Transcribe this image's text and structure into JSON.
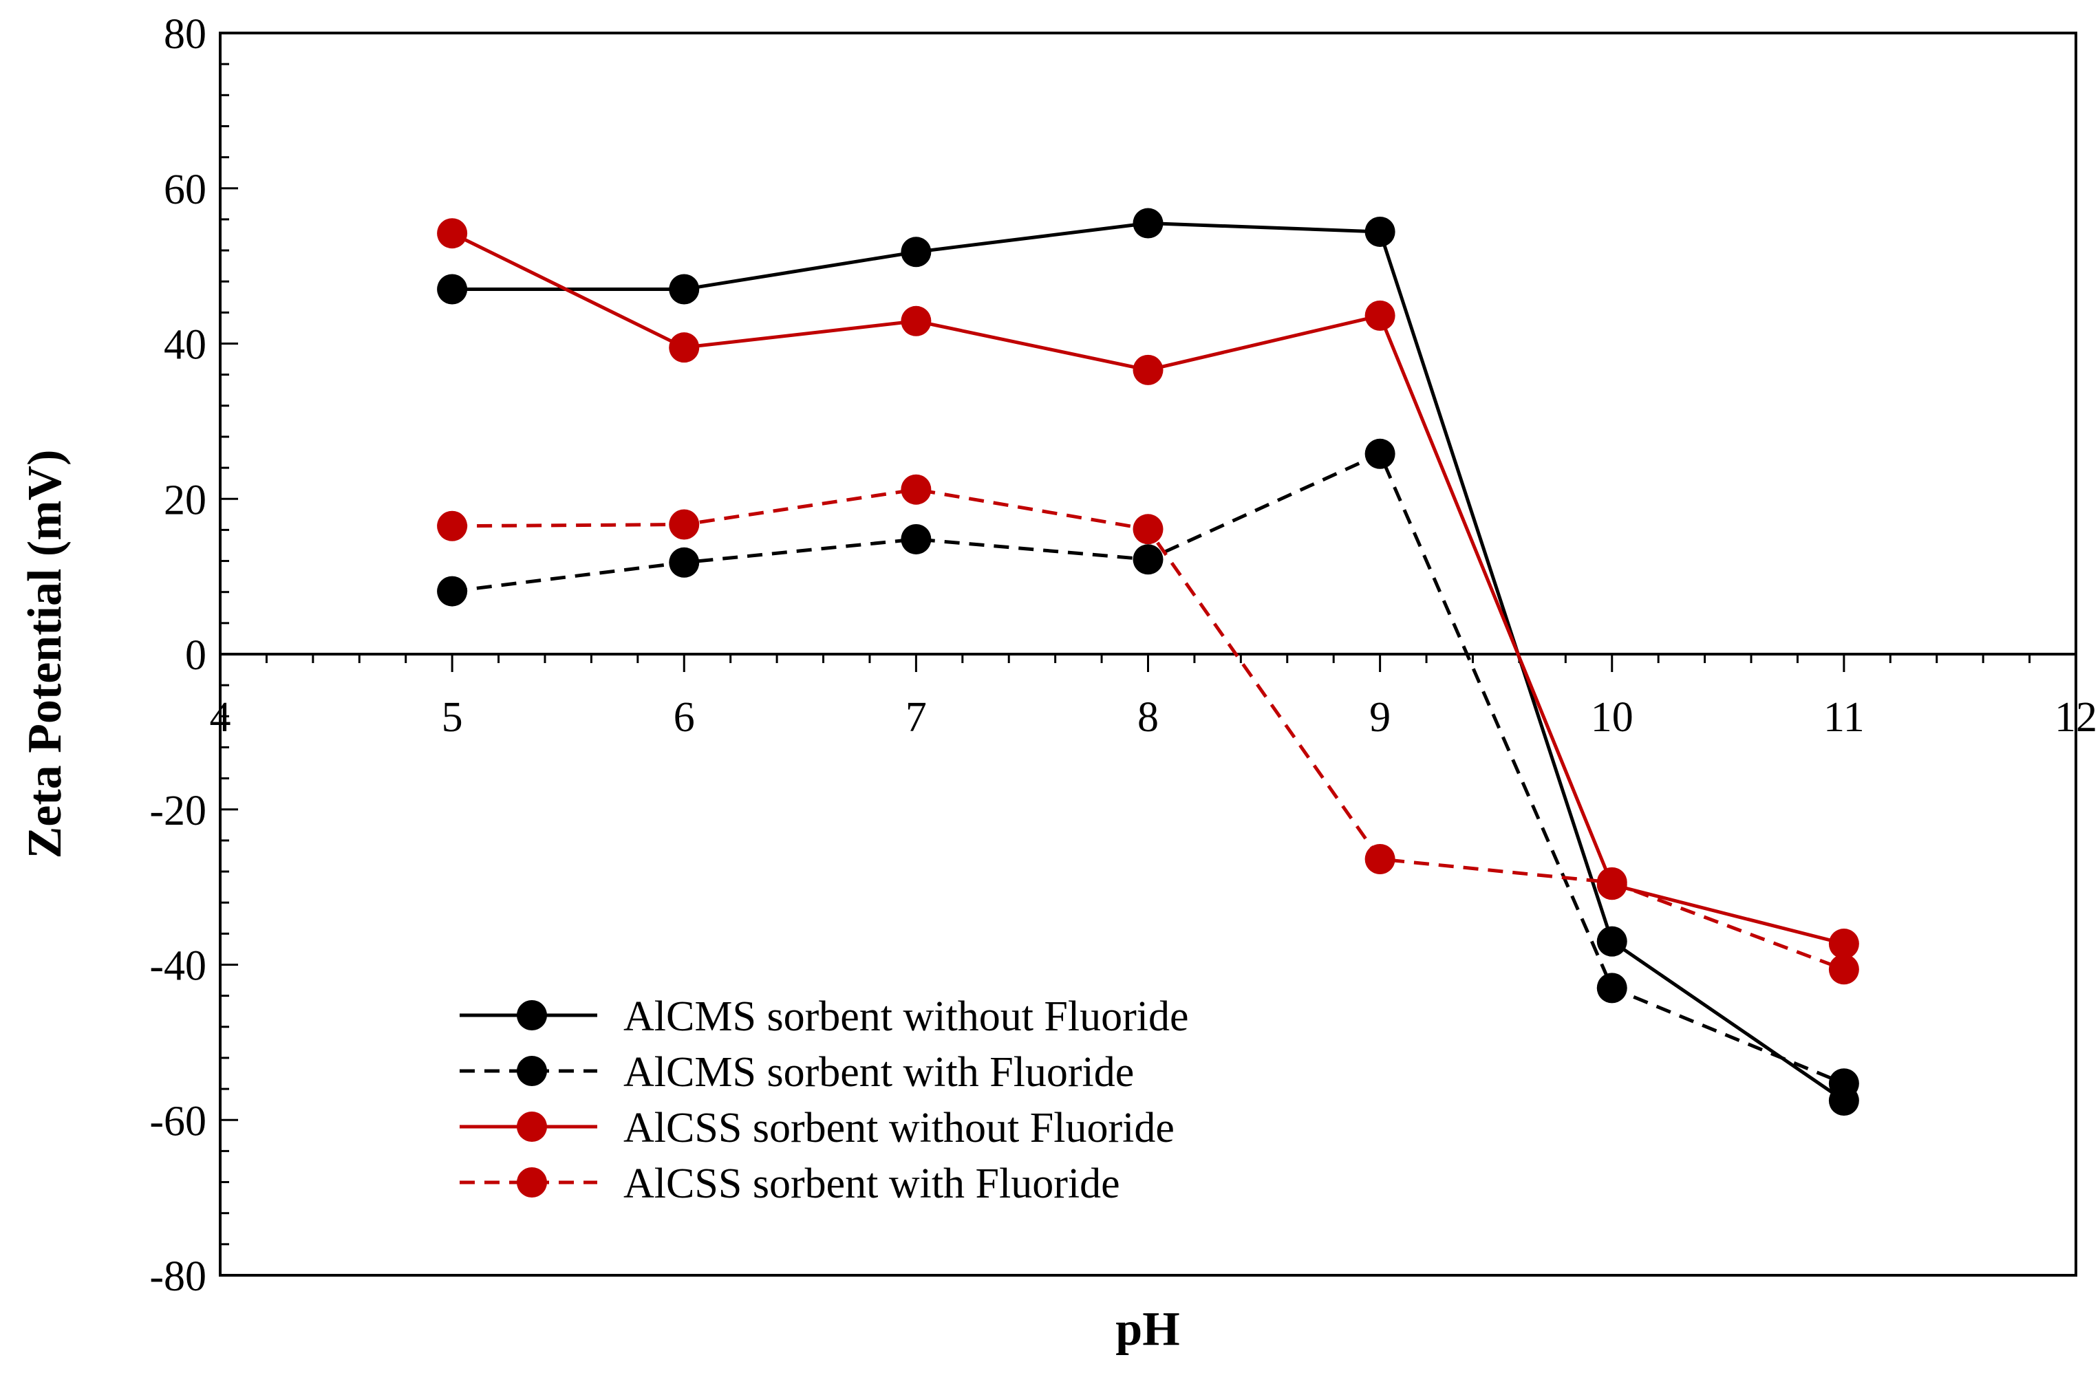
{
  "chart_data": {
    "type": "line",
    "title": "",
    "xlabel": "pH",
    "ylabel": "Zeta Potential (mV)",
    "xlim": [
      4,
      12
    ],
    "ylim": [
      -80,
      80
    ],
    "x_ticks": [
      4,
      5,
      6,
      7,
      8,
      9,
      10,
      11,
      12
    ],
    "y_ticks": [
      -80,
      -60,
      -40,
      -20,
      0,
      20,
      40,
      60,
      80
    ],
    "x_tick_labels": [
      "4",
      "5",
      "6",
      "7",
      "8",
      "9",
      "10",
      "11",
      "12"
    ],
    "y_tick_labels": [
      "-80",
      "-60",
      "-40",
      "-20",
      "0",
      "20",
      "40",
      "60",
      "80"
    ],
    "grid": false,
    "legend_position": "bottom-left",
    "series": [
      {
        "name": "AlCMS sorbent without Fluoride",
        "color": "#000000",
        "dash": "solid",
        "x": [
          5,
          6,
          7,
          8,
          9,
          10,
          11
        ],
        "y": [
          47,
          47,
          51.8,
          55.5,
          54.4,
          -37,
          -57.5
        ]
      },
      {
        "name": "AlCMS sorbent with Fluoride",
        "color": "#000000",
        "dash": "dashed",
        "x": [
          5,
          6,
          7,
          8,
          9,
          10,
          11
        ],
        "y": [
          8.1,
          11.8,
          14.8,
          12.2,
          25.8,
          -43,
          -55.3
        ]
      },
      {
        "name": "AlCSS sorbent without Fluoride",
        "color": "#c00000",
        "dash": "solid",
        "x": [
          5,
          6,
          7,
          8,
          9,
          10,
          11
        ],
        "y": [
          54.2,
          39.5,
          42.9,
          36.6,
          43.6,
          -29.7,
          -37.3
        ]
      },
      {
        "name": "AlCSS sorbent with Fluoride",
        "color": "#c00000",
        "dash": "dashed",
        "x": [
          5,
          6,
          7,
          8,
          9,
          10,
          11
        ],
        "y": [
          16.5,
          16.7,
          21.2,
          16.1,
          -26.4,
          -29.4,
          -40.6
        ]
      }
    ]
  }
}
